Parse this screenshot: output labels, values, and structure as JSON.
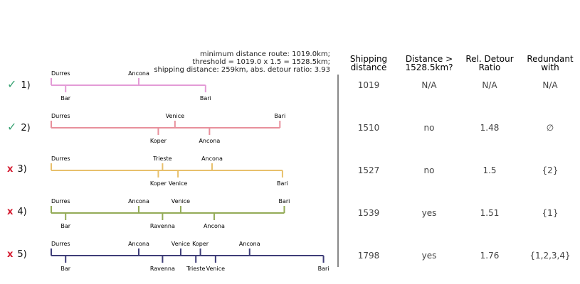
{
  "info": {
    "line1": "minimum distance route: 1019.0km;",
    "line2": "threshold = 1019.0 x 1.5 = 1528.5km;",
    "line3": "shipping distance: 259km, abs. detour ratio: 3.93"
  },
  "headers": [
    {
      "line1": "Shipping",
      "line2": "distance"
    },
    {
      "line1": "Distance >",
      "line2": "1528.5km?"
    },
    {
      "line1": "Rel. Detour",
      "line2": "Ratio"
    },
    {
      "line1": "Redundant",
      "line2": "with"
    }
  ],
  "scale": {
    "min": 0,
    "max": 1800
  },
  "routes": [
    {
      "label": "1)",
      "status": "ok",
      "mark": "✓",
      "color": "#e39bd6",
      "distance": "1019",
      "exceeds": "N/A",
      "ratio": "N/A",
      "redundant": "N/A",
      "total": 1019,
      "stops": [
        {
          "name": "Durres",
          "pos": 0,
          "side": "up"
        },
        {
          "name": "Bar",
          "pos": 95,
          "side": "down"
        },
        {
          "name": "Ancona",
          "pos": 578,
          "side": "up"
        },
        {
          "name": "Bari",
          "pos": 1019,
          "side": "down"
        }
      ]
    },
    {
      "label": "2)",
      "status": "ok",
      "mark": "✓",
      "color": "#e8909c",
      "distance": "1510",
      "exceeds": "no",
      "ratio": "1.48",
      "redundant": "∅",
      "total": 1510,
      "stops": [
        {
          "name": "Durres",
          "pos": 0,
          "side": "up"
        },
        {
          "name": "Koper",
          "pos": 707,
          "side": "down"
        },
        {
          "name": "Venice",
          "pos": 817,
          "side": "up"
        },
        {
          "name": "Ancona",
          "pos": 1045,
          "side": "down"
        },
        {
          "name": "Bari",
          "pos": 1510,
          "side": "up"
        }
      ]
    },
    {
      "label": "3)",
      "status": "bad",
      "mark": "x",
      "color": "#e8c06c",
      "distance": "1527",
      "exceeds": "no",
      "ratio": "1.5",
      "redundant": "{2}",
      "total": 1527,
      "stops": [
        {
          "name": "Durres",
          "pos": 0,
          "side": "up"
        },
        {
          "name": "Koper",
          "pos": 707,
          "side": "down"
        },
        {
          "name": "Trieste",
          "pos": 735,
          "side": "up"
        },
        {
          "name": "Venice",
          "pos": 837,
          "side": "down"
        },
        {
          "name": "Ancona",
          "pos": 1062,
          "side": "up"
        },
        {
          "name": "Bari",
          "pos": 1527,
          "side": "down"
        }
      ]
    },
    {
      "label": "4)",
      "status": "bad",
      "mark": "x",
      "color": "#93ab57",
      "distance": "1539",
      "exceeds": "yes",
      "ratio": "1.51",
      "redundant": "{1}",
      "total": 1539,
      "stops": [
        {
          "name": "Durres",
          "pos": 0,
          "side": "up"
        },
        {
          "name": "Bar",
          "pos": 95,
          "side": "down"
        },
        {
          "name": "Ancona",
          "pos": 578,
          "side": "up"
        },
        {
          "name": "Ravenna",
          "pos": 735,
          "side": "down"
        },
        {
          "name": "Venice",
          "pos": 855,
          "side": "up"
        },
        {
          "name": "Ancona",
          "pos": 1076,
          "side": "down"
        },
        {
          "name": "Bari",
          "pos": 1539,
          "side": "up"
        }
      ]
    },
    {
      "label": "5)",
      "status": "bad",
      "mark": "x",
      "color": "#3e3d78",
      "distance": "1798",
      "exceeds": "yes",
      "ratio": "1.76",
      "redundant": "{1,2,3,4}",
      "total": 1798,
      "stops": [
        {
          "name": "Durres",
          "pos": 0,
          "side": "up"
        },
        {
          "name": "Bar",
          "pos": 95,
          "side": "down"
        },
        {
          "name": "Ancona",
          "pos": 578,
          "side": "up"
        },
        {
          "name": "Ravenna",
          "pos": 735,
          "side": "down"
        },
        {
          "name": "Venice",
          "pos": 855,
          "side": "up"
        },
        {
          "name": "Trieste",
          "pos": 955,
          "side": "down"
        },
        {
          "name": "Koper",
          "pos": 985,
          "side": "up"
        },
        {
          "name": "Venice",
          "pos": 1085,
          "side": "down"
        },
        {
          "name": "Ancona",
          "pos": 1310,
          "side": "up"
        },
        {
          "name": "Bari",
          "pos": 1798,
          "side": "down"
        }
      ]
    }
  ]
}
